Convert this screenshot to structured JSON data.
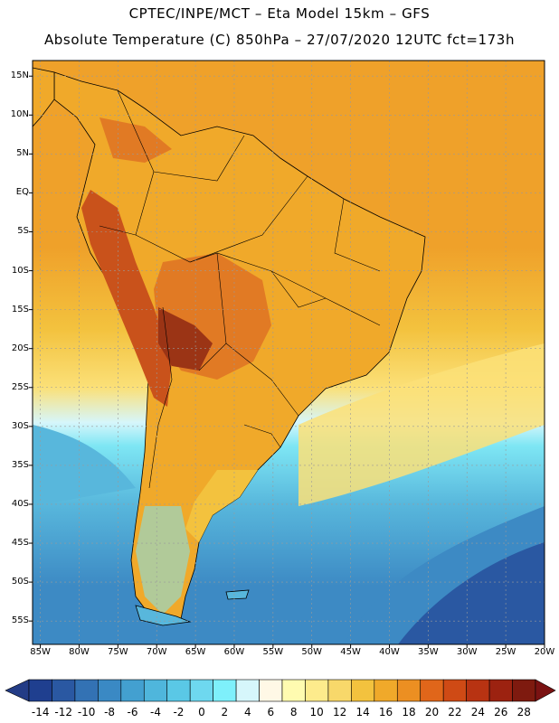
{
  "title_line1": "CPTEC/INPE/MCT –  Eta Model 15km – GFS",
  "title_line2": "Absolute Temperature (C) 850hPa – 27/07/2020 12UTC fct=173h",
  "map": {
    "lat_labels": [
      "15N",
      "10N",
      "5N",
      "EQ",
      "5S",
      "10S",
      "15S",
      "20S",
      "25S",
      "30S",
      "35S",
      "40S",
      "45S",
      "50S",
      "55S"
    ],
    "lat_values": [
      15,
      10,
      5,
      0,
      -5,
      -10,
      -15,
      -20,
      -25,
      -30,
      -35,
      -40,
      -45,
      -50,
      -55
    ],
    "lon_labels": [
      "85W",
      "80W",
      "75W",
      "70W",
      "65W",
      "60W",
      "55W",
      "50W",
      "45W",
      "40W",
      "35W",
      "30W",
      "25W",
      "20W"
    ],
    "lon_values": [
      -85,
      -80,
      -75,
      -70,
      -65,
      -60,
      -55,
      -50,
      -45,
      -40,
      -35,
      -30,
      -25,
      -20
    ],
    "lat_range": [
      -58,
      17
    ],
    "lon_range": [
      -86,
      -20
    ]
  },
  "colorbar": {
    "labels": [
      "-14",
      "-12",
      "-10",
      "-8",
      "-6",
      "-4",
      "-2",
      "0",
      "2",
      "4",
      "6",
      "8",
      "10",
      "12",
      "14",
      "16",
      "18",
      "20",
      "22",
      "24",
      "26",
      "28"
    ],
    "colors": [
      "#1f3f8f",
      "#2a58a2",
      "#3372b4",
      "#3a89c4",
      "#43a0d0",
      "#4fb6dc",
      "#5ac8e6",
      "#6ed8ef",
      "#7ef0fb",
      "#d6f6fb",
      "#fff8e6",
      "#fffbb0",
      "#fdeb8c",
      "#f8d86a",
      "#f3c23e",
      "#f0a92a",
      "#ec8f22",
      "#e0661a",
      "#cf4a15",
      "#b83312",
      "#9c2210",
      "#7e1a0f"
    ],
    "under_color": "#233c86",
    "over_color": "#7a1212"
  },
  "palette": {
    "ocean_cold": "#3d8ac4",
    "ocean_cool": "#58b7dc",
    "ocean_light": "#7ee6f4",
    "ocean_pale": "#d6f6fb",
    "warm_yellow": "#fbe078",
    "warm_gold": "#f3b736",
    "warm_orange": "#efa12a",
    "land_hot": "#e17a24",
    "land_hotter": "#c9521b",
    "land_hottest": "#9b3415"
  }
}
